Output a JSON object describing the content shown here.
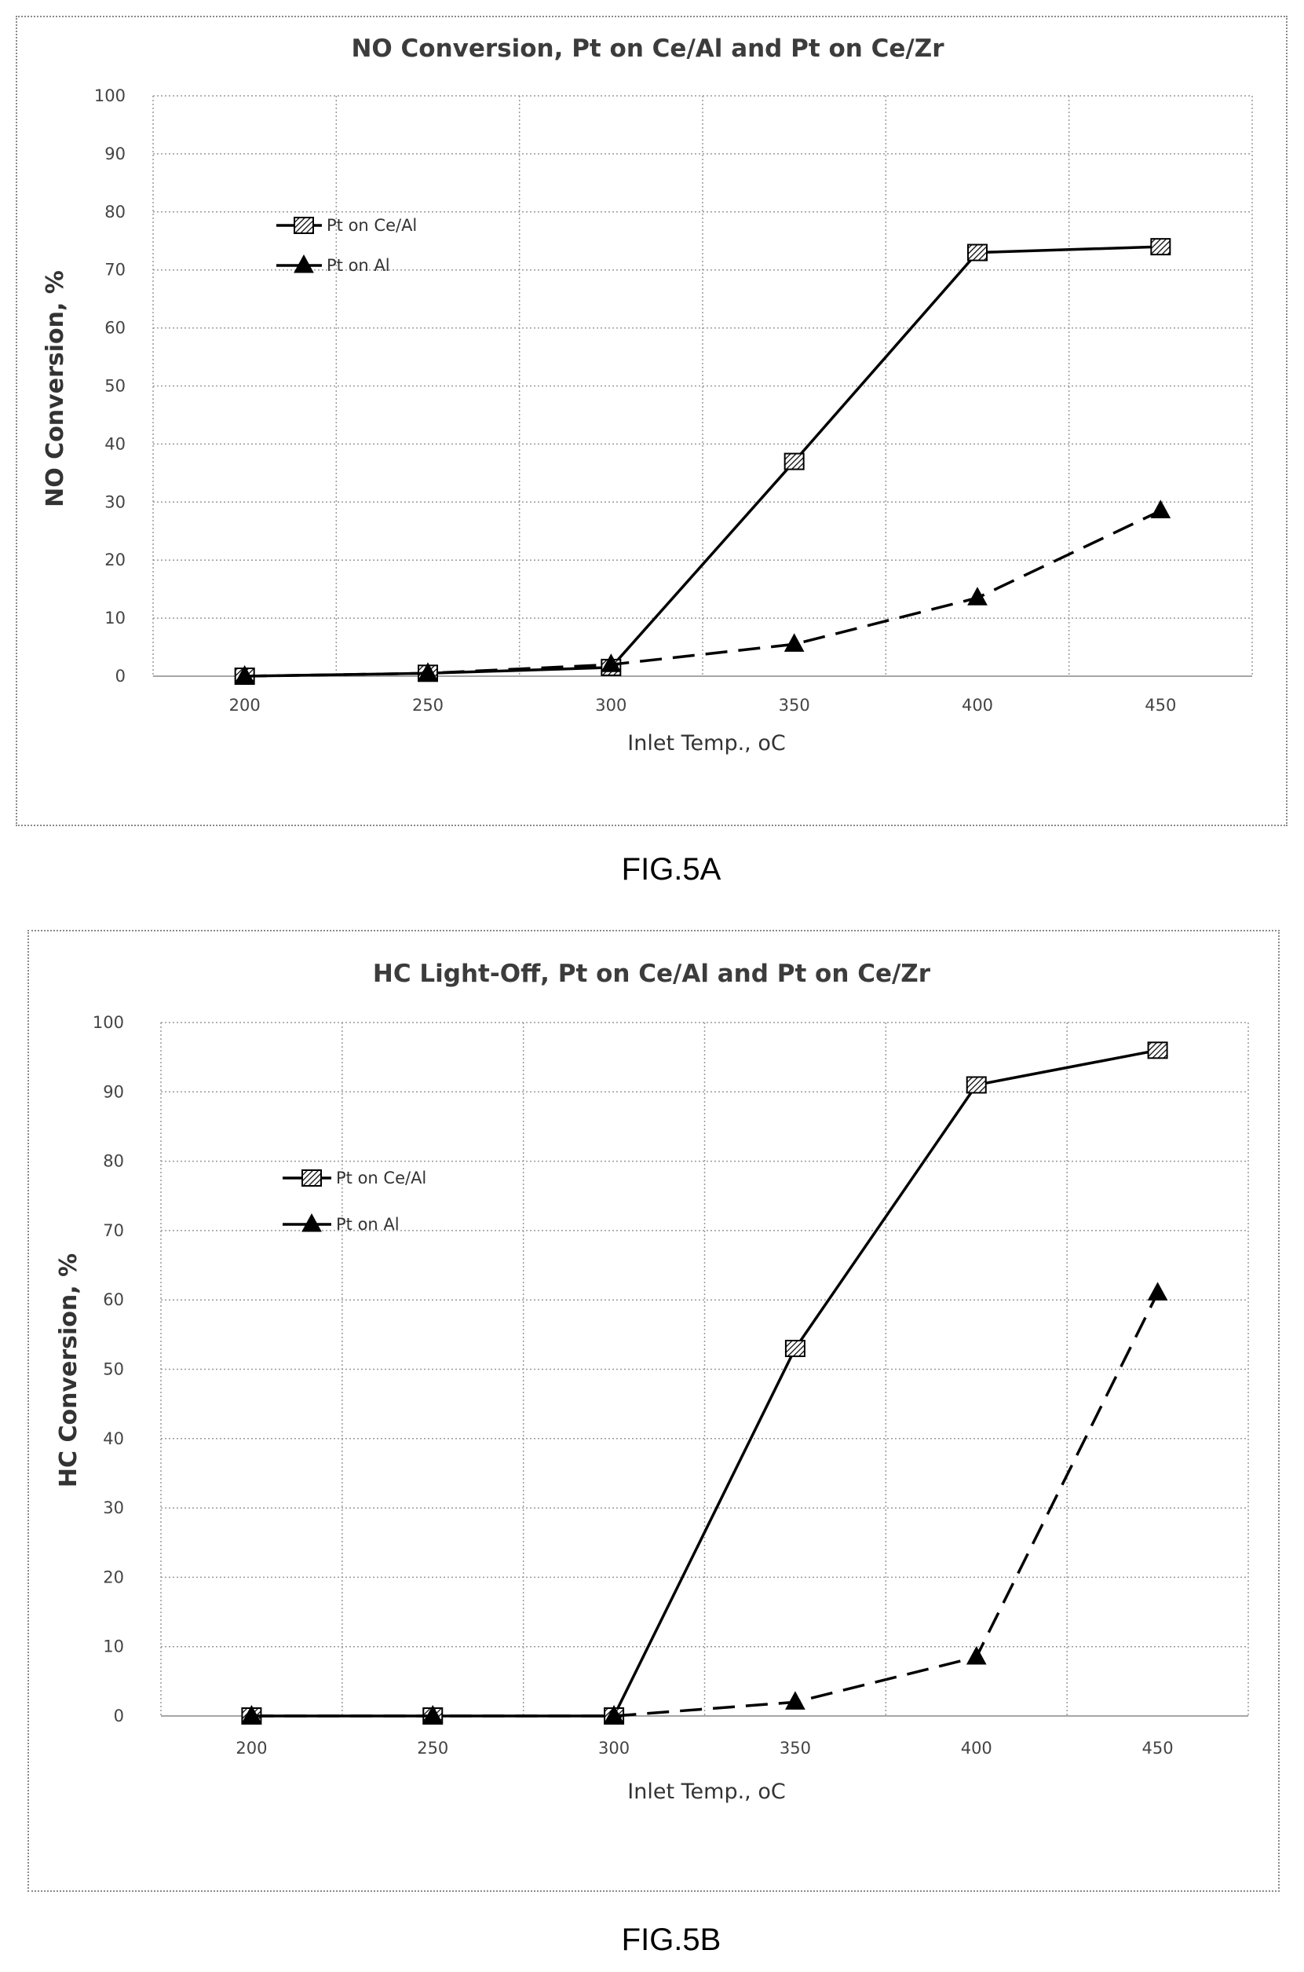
{
  "figures": [
    {
      "caption": "FIG.5A",
      "chart_data": {
        "type": "line",
        "title": "NO Conversion, Pt on Ce/Al and Pt on Ce/Zr",
        "xlabel": "Inlet Temp., oC",
        "ylabel": "NO Conversion, %",
        "categories": [
          "200",
          "250",
          "300",
          "350",
          "400",
          "450"
        ],
        "ylim": [
          0,
          100
        ],
        "yticks": [
          0,
          10,
          20,
          30,
          40,
          50,
          60,
          70,
          80,
          90,
          100
        ],
        "grid": true,
        "legend_position": "upper-left",
        "series": [
          {
            "name": "Pt on Ce/Al",
            "values": [
              0,
              0.5,
              1.5,
              37,
              73,
              74
            ],
            "line_style": "solid",
            "marker": "hatched-square",
            "color": "#000000"
          },
          {
            "name": "Pt on Al",
            "values": [
              0,
              0.5,
              2,
              5.5,
              13.5,
              28.5
            ],
            "line_style": "dashed",
            "marker": "triangle",
            "color": "#000000"
          }
        ]
      }
    },
    {
      "caption": "FIG.5B",
      "chart_data": {
        "type": "line",
        "title": "HC Light-Off, Pt on Ce/Al and Pt on Ce/Zr",
        "xlabel": "Inlet Temp., oC",
        "ylabel": "HC Conversion, %",
        "categories": [
          "200",
          "250",
          "300",
          "350",
          "400",
          "450"
        ],
        "ylim": [
          0,
          100
        ],
        "yticks": [
          0,
          10,
          20,
          30,
          40,
          50,
          60,
          70,
          80,
          90,
          100
        ],
        "grid": true,
        "legend_position": "upper-left",
        "series": [
          {
            "name": "Pt on Ce/Al",
            "values": [
              0,
              0,
              0,
              53,
              91,
              96
            ],
            "line_style": "solid",
            "marker": "hatched-square",
            "color": "#000000"
          },
          {
            "name": "Pt on Al",
            "values": [
              0,
              0,
              0,
              2,
              8.5,
              61
            ],
            "line_style": "dashed",
            "marker": "triangle",
            "color": "#000000"
          }
        ]
      }
    }
  ]
}
